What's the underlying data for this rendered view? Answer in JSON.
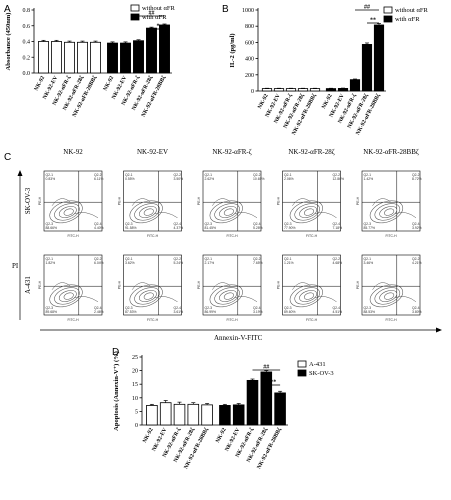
{
  "colors": {
    "without": "#ffffff",
    "with": "#000000",
    "axis": "#000000",
    "density": "#555555"
  },
  "categories": [
    "NK-92",
    "NK-92-EV",
    "NK-92-αFR-ζ",
    "NK-92-αFR-28ζ",
    "NK-92-αFR-28BBζ"
  ],
  "chart_data": [
    {
      "panel": "A",
      "type": "bar",
      "ylabel": "Absorbance (450nm)",
      "ylim": [
        0,
        0.8
      ],
      "yticks": [
        "0.0",
        "0.2",
        "0.4",
        "0.6",
        "0.8"
      ],
      "legend": [
        "without αFR",
        "with αFR"
      ],
      "legend_position": "top-right",
      "series": [
        {
          "name": "without αFR",
          "values": [
            0.4,
            0.4,
            0.39,
            0.39,
            0.39
          ],
          "errors": [
            0.015,
            0.015,
            0.015,
            0.015,
            0.015
          ]
        },
        {
          "name": "with αFR",
          "values": [
            0.38,
            0.38,
            0.41,
            0.57,
            0.61
          ],
          "errors": [
            0.015,
            0.015,
            0.012,
            0.012,
            0.012
          ]
        }
      ],
      "significance": [
        {
          "label": "##",
          "from": [
            1,
            2
          ],
          "to": [
            1,
            4
          ]
        },
        {
          "label": "*",
          "from": [
            1,
            3
          ],
          "to": [
            1,
            4
          ]
        }
      ]
    },
    {
      "panel": "B",
      "type": "bar",
      "ylabel": "IL-2 (pg/ml)",
      "ylim": [
        0,
        1000
      ],
      "yticks": [
        "0",
        "200",
        "400",
        "600",
        "800",
        "1000"
      ],
      "legend": [
        "without αFR",
        "with αFR"
      ],
      "legend_position": "top-left",
      "series": [
        {
          "name": "without αFR",
          "values": [
            30,
            30,
            30,
            30,
            30
          ],
          "errors": [
            4,
            4,
            4,
            4,
            4
          ]
        },
        {
          "name": "with αFR",
          "values": [
            30,
            32,
            140,
            575,
            815
          ],
          "errors": [
            4,
            4,
            8,
            18,
            18
          ]
        }
      ],
      "significance": [
        {
          "label": "##",
          "from": [
            1,
            2
          ],
          "to": [
            1,
            4
          ]
        },
        {
          "label": "**",
          "from": [
            1,
            3
          ],
          "to": [
            1,
            4
          ]
        }
      ]
    },
    {
      "panel": "D",
      "type": "bar",
      "ylabel": "Apoptosis (Annexin-V⁺) (%)",
      "ylim": [
        0,
        25
      ],
      "yticks": [
        "0",
        "5",
        "10",
        "15",
        "20",
        "25"
      ],
      "legend": [
        "A-431",
        "SK-OV-3"
      ],
      "legend_position": "top-right",
      "series": [
        {
          "name": "A-431",
          "values": [
            7.2,
            8.2,
            7.6,
            7.6,
            7.4
          ],
          "errors": [
            0.4,
            0.8,
            0.8,
            0.6,
            0.5
          ]
        },
        {
          "name": "SK-OV-3",
          "values": [
            7.2,
            7.4,
            16.4,
            19.5,
            11.8
          ],
          "errors": [
            0.4,
            0.5,
            0.5,
            0.5,
            0.6
          ]
        }
      ],
      "significance": [
        {
          "label": "##",
          "from": [
            1,
            2
          ],
          "to": [
            1,
            4
          ]
        },
        {
          "label": "**",
          "from": [
            1,
            3
          ],
          "to": [
            1,
            4
          ]
        }
      ]
    }
  ],
  "flow": {
    "panel": "C",
    "columns": [
      "NK-92",
      "NK-92-EV",
      "NK-92-αFR-ζ",
      "NK-92-αFR-28ζ",
      "NK-92-αFR-28BBζ"
    ],
    "rows": [
      {
        "label": "SK-OV-3",
        "q": [
          [
            "0.83%",
            "6.11%",
            "88.66%",
            "4.40%"
          ],
          [
            "0.55%",
            "3.50%",
            "91.58%",
            "4.37%"
          ],
          [
            "2.62%",
            "10.65%",
            "81.45%",
            "5.28%"
          ],
          [
            "2.06%",
            "12.86%",
            "77.90%",
            "7.18%"
          ],
          [
            "1.42%",
            "8.72%",
            "85.77%",
            "3.92%"
          ]
        ]
      },
      {
        "label": "A-431",
        "q": [
          [
            "1.82%",
            "6.04%",
            "89.68%",
            "2.46%"
          ],
          [
            "3.62%",
            "5.24%",
            "87.53%",
            "3.61%"
          ],
          [
            "2.17%",
            "7.65%",
            "86.99%",
            "3.19%"
          ],
          [
            "1.21%",
            "4.68%",
            "89.60%",
            "4.51%"
          ],
          [
            "3.46%",
            "4.21%",
            "88.53%",
            "3.80%"
          ]
        ]
      }
    ],
    "quadrant_names": [
      "Q2-1",
      "Q2-2",
      "Q2-3",
      "Q2-4"
    ],
    "ylabel": "PI",
    "xlabel": "Annexin-V-FITC",
    "plot_xlabel": "FITC-H",
    "plot_ylabel": "PE-H"
  },
  "panels": {
    "a": "A",
    "b": "B",
    "c": "C",
    "d": "D"
  }
}
